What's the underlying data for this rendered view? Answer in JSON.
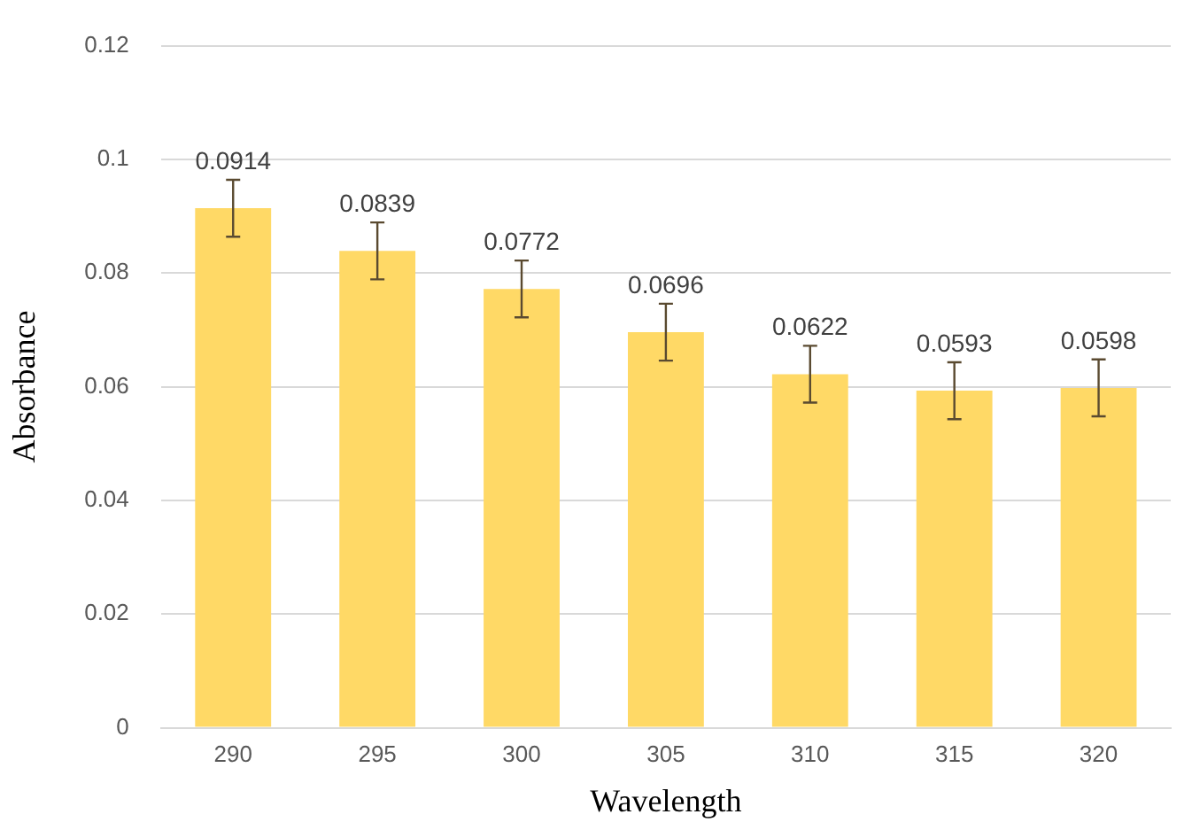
{
  "chart_data": {
    "type": "bar",
    "xlabel": "Wavelength",
    "ylabel": "Absorbance",
    "categories": [
      "290",
      "295",
      "300",
      "305",
      "310",
      "315",
      "320"
    ],
    "values": [
      0.0914,
      0.0839,
      0.0772,
      0.0696,
      0.0622,
      0.0593,
      0.0598
    ],
    "errors": [
      0.005,
      0.005,
      0.005,
      0.005,
      0.005,
      0.005,
      0.005
    ],
    "color": "#ffd966",
    "ylim": [
      0,
      0.12
    ],
    "yticks": [
      0,
      0.02,
      0.04,
      0.06,
      0.08,
      0.1,
      0.12
    ],
    "grid": "y",
    "data_labels": true
  }
}
